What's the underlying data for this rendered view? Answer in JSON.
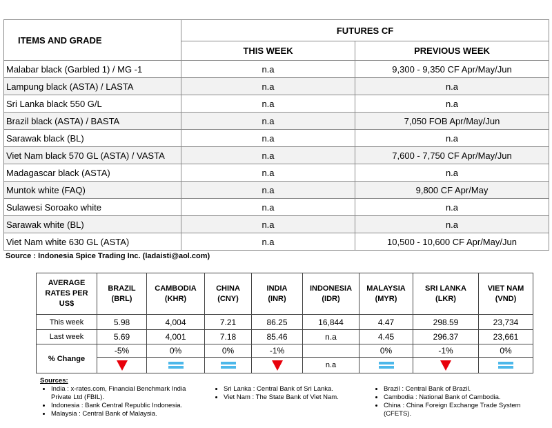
{
  "futures": {
    "header": {
      "items": "ITEMS AND GRADE",
      "group": "FUTURES CF",
      "this_week": "THIS WEEK",
      "previous_week": "PREVIOUS WEEK"
    },
    "rows": [
      [
        "Malabar black (Garbled 1) / MG -1",
        "n.a",
        "9,300 - 9,350 CF Apr/May/Jun"
      ],
      [
        "Lampung black (ASTA) / LASTA",
        "n.a",
        "n.a"
      ],
      [
        "Sri Lanka black 550 G/L",
        "n.a",
        "n.a"
      ],
      [
        "Brazil black (ASTA) / BASTA",
        "n.a",
        "7,050 FOB Apr/May/Jun"
      ],
      [
        "Sarawak black (BL)",
        "n.a",
        "n.a"
      ],
      [
        "Viet Nam black 570 GL (ASTA) / VASTA",
        "n.a",
        "7,600 - 7,750 CF Apr/May/Jun"
      ],
      [
        "Madagascar black (ASTA)",
        "n.a",
        "n.a"
      ],
      [
        "Muntok white (FAQ)",
        "n.a",
        "9,800 CF Apr/May"
      ],
      [
        "Sulawesi Soroako white",
        "n.a",
        "n.a"
      ],
      [
        "Sarawak  white (BL)",
        "n.a",
        "n.a"
      ],
      [
        "Viet Nam white 630 GL (ASTA)",
        "n.a",
        "10,500 - 10,600 CF Apr/May/Jun"
      ]
    ]
  },
  "source": "Source : Indonesia Spice Trading Inc. (ladaisti@aol.com)",
  "rates": {
    "header_label": "AVERAGE RATES PER US$",
    "currencies": [
      {
        "name": "BRAZIL",
        "code": "(BRL)"
      },
      {
        "name": "CAMBODIA",
        "code": "(KHR)"
      },
      {
        "name": "CHINA",
        "code": "(CNY)"
      },
      {
        "name": "INDIA",
        "code": "(INR)"
      },
      {
        "name": "INDONESIA",
        "code": "(IDR)"
      },
      {
        "name": "MALAYSIA",
        "code": "(MYR)"
      },
      {
        "name": "SRI LANKA",
        "code": "(LKR)"
      },
      {
        "name": "VIET NAM",
        "code": "(VND)"
      }
    ],
    "this_week_label": "This week",
    "this_week": [
      "5.98",
      "4,004",
      "7.21",
      "86.25",
      "16,844",
      "4.47",
      "298.59",
      "23,734"
    ],
    "last_week_label": "Last week",
    "last_week": [
      "5.69",
      "4,001",
      "7.18",
      "85.46",
      "n.a",
      "4.45",
      "296.37",
      "23,661"
    ],
    "change_label": "% Change",
    "change": [
      "-5%",
      "0%",
      "0%",
      "-1%",
      null,
      "0%",
      "-1%",
      "0%"
    ],
    "change_note": "n.a"
  },
  "sources": {
    "title": "Sources:",
    "columns": [
      [
        "India : x-rates.com, Financial Benchmark India Private Ltd (FBIL).",
        "Indonesia : Bank Central Republic Indonesia.",
        "Malaysia : Central Bank of Malaysia."
      ],
      [
        "Sri Lanka : Central Bank of Sri Lanka.",
        "Viet Nam : The State Bank of Viet Nam."
      ],
      [
        "Brazil :  Central Bank of Brazil.",
        "Cambodia : National Bank of Cambodia.",
        "China : China Foreign Exchange Trade System (CFETS)."
      ]
    ]
  }
}
